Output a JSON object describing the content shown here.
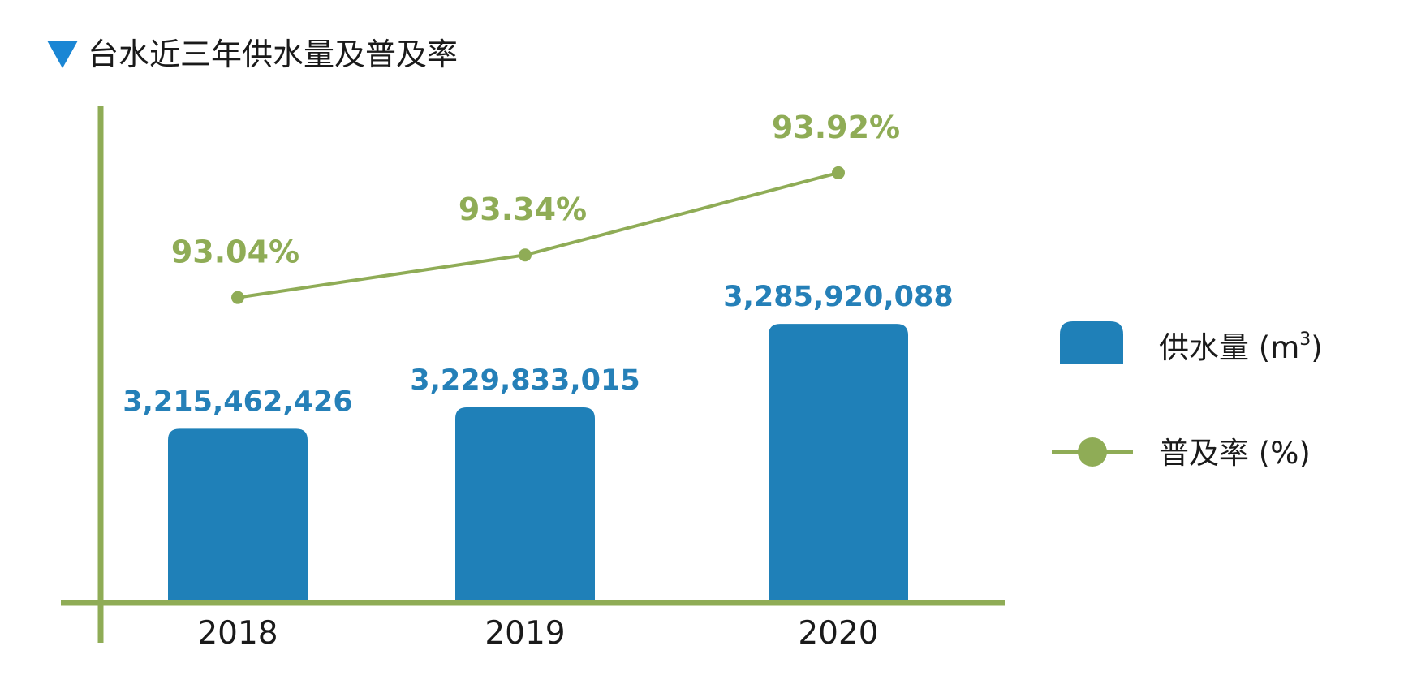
{
  "title": "台水近三年供水量及普及率",
  "colors": {
    "bar": "#1f80b8",
    "line": "#8fac56",
    "axis": "#8fac56",
    "title_marker": "#1a86d4",
    "bar_label": "#2580b8",
    "text": "#1a1a1a"
  },
  "chart_data": {
    "type": "bar",
    "categories": [
      "2018",
      "2019",
      "2020"
    ],
    "series": [
      {
        "name": "供水量",
        "unit": "m",
        "unit_superscript": "3",
        "chart_type": "bar",
        "values": [
          3215462426,
          3229833015,
          3285920088
        ],
        "labels": [
          "3,215,462,426",
          "3,229,833,015",
          "3,285,920,088"
        ]
      },
      {
        "name": "普及率",
        "unit": "%",
        "chart_type": "line",
        "values": [
          93.04,
          93.34,
          93.92
        ],
        "labels": [
          "93.04%",
          "93.34%",
          "93.92%"
        ]
      }
    ],
    "legend": {
      "position": "right",
      "items": [
        "供水量 (m³)",
        "普及率 (%)"
      ]
    },
    "grid": false
  }
}
